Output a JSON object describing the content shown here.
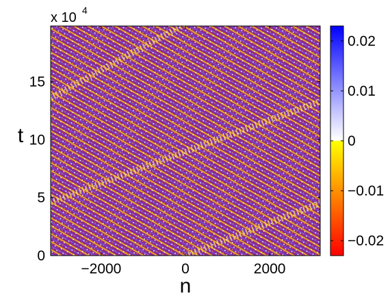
{
  "chart_data": {
    "type": "heatmap",
    "title": "",
    "xlabel": "n",
    "ylabel": "t",
    "y_scale_note": "x 10",
    "y_scale_exponent": "4",
    "xlim": [
      -3200,
      3200
    ],
    "ylim": [
      0,
      19.8
    ],
    "xticks": [
      -2000,
      0,
      2000
    ],
    "xtick_labels": [
      "−2000",
      "0",
      "2000"
    ],
    "yticks": [
      0,
      5,
      10,
      15
    ],
    "ytick_labels": [
      "0",
      "5",
      "10",
      "15"
    ],
    "colorbar": {
      "range": [
        -0.023,
        0.023
      ],
      "ticks": [
        0.02,
        0.01,
        0,
        -0.01,
        -0.02
      ],
      "tick_labels": [
        "0.02",
        "0.01",
        "0",
        "−0.01",
        "−0.02"
      ],
      "colors": {
        "max": "#0000ff",
        "light_blue": "#c8c8ff",
        "zero": "#ffffff",
        "zero_neg": "#ffff00",
        "orange": "#ff8000",
        "min": "#ff0000"
      }
    },
    "field": {
      "background_color": "#8c2a8c",
      "stripe_colors": [
        "#ffd000",
        "#ff8a1c",
        "#ffffff",
        "#6b5cff"
      ],
      "front_color": "#ffe060",
      "fronts": [
        {
          "n_start": -3200,
          "t_start": 4.6,
          "n_end": 3200,
          "t_end": 13.3
        },
        {
          "n_start": -3200,
          "t_start": 13.6,
          "n_end": -100,
          "t_end": 19.8
        },
        {
          "n_start": 0,
          "t_start": 0.0,
          "n_end": 3200,
          "t_end": 4.5
        }
      ]
    }
  }
}
